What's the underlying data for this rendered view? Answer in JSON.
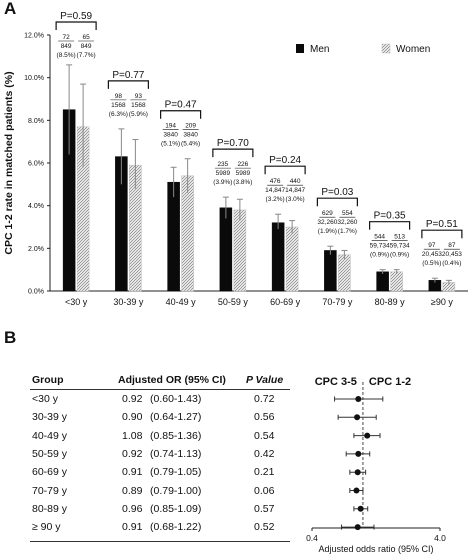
{
  "panel_labels": {
    "a": "A",
    "b": "B"
  },
  "colors": {
    "men": "#0a0a0a",
    "women_fill": "#e6e6e6",
    "women_hatch": "#9a9a9a",
    "axis": "#222222",
    "error_bar": "#888888"
  },
  "chart_data": [
    {
      "type": "bar",
      "ylabel": "CPC 1-2 rate in matched patients (%)",
      "ylim": [
        0,
        12
      ],
      "yticks": [
        "0.0%",
        "2.0%",
        "4.0%",
        "6.0%",
        "8.0%",
        "10.0%",
        "12.0%"
      ],
      "legend_placement": "top-right",
      "categories": [
        "<30 y",
        "30-39 y",
        "40-49 y",
        "50-59 y",
        "60-69 y",
        "70-79 y",
        "80-89 y",
        "≥90 y"
      ],
      "series": [
        {
          "name": "Men",
          "values": [
            8.5,
            6.3,
            5.1,
            3.9,
            3.2,
            1.9,
            0.9,
            0.5
          ],
          "err_upper": [
            10.6,
            7.6,
            5.8,
            4.4,
            3.6,
            2.1,
            1.0,
            0.6
          ],
          "err_lower": [
            6.4,
            5.0,
            4.4,
            3.4,
            2.9,
            1.7,
            0.8,
            0.4
          ]
        },
        {
          "name": "Women",
          "values": [
            7.7,
            5.9,
            5.4,
            3.8,
            3.0,
            1.7,
            0.9,
            0.4
          ],
          "err_upper": [
            9.7,
            7.1,
            6.2,
            4.3,
            3.3,
            1.9,
            1.0,
            0.5
          ],
          "err_lower": [
            5.8,
            4.8,
            4.6,
            3.3,
            2.7,
            1.5,
            0.8,
            0.3
          ]
        }
      ],
      "annotations": [
        {
          "p": "P=0.59",
          "men": [
            "72",
            "849",
            "(8.5%)"
          ],
          "women": [
            "65",
            "849",
            "(7.7%)"
          ]
        },
        {
          "p": "P=0.77",
          "men": [
            "98",
            "1568",
            "(6.3%)"
          ],
          "women": [
            "93",
            "1568",
            "(5.9%)"
          ]
        },
        {
          "p": "P=0.47",
          "men": [
            "194",
            "3840",
            "(5.1%)"
          ],
          "women": [
            "209",
            "3840",
            "(5.4%)"
          ]
        },
        {
          "p": "P=0.70",
          "men": [
            "235",
            "5989",
            "(3.9%)"
          ],
          "women": [
            "226",
            "5989",
            "(3.8%)"
          ]
        },
        {
          "p": "P=0.24",
          "men": [
            "476",
            "14,847",
            "(3.2%)"
          ],
          "women": [
            "440",
            "14,847",
            "(3.0%)"
          ]
        },
        {
          "p": "P=0.03",
          "men": [
            "629",
            "32,260",
            "(1.9%)"
          ],
          "women": [
            "554",
            "32,260",
            "(1.7%)"
          ]
        },
        {
          "p": "P=0.35",
          "men": [
            "544",
            "59,734",
            "(0.9%)"
          ],
          "women": [
            "513",
            "59,734",
            "(0.9%)"
          ]
        },
        {
          "p": "P=0.51",
          "men": [
            "97",
            "20,453",
            "(0.5%)"
          ],
          "women": [
            "87",
            "20,453",
            "(0.4%)"
          ]
        }
      ]
    },
    {
      "type": "table",
      "columns": [
        "Group",
        "Adjusted OR (95% CI)",
        "P Value"
      ],
      "rows": [
        {
          "group": "<30 y",
          "or": "0.92",
          "ci": "(0.60-1.43)",
          "p": "0.72"
        },
        {
          "group": "30-39 y",
          "or": "0.90",
          "ci": "(0.64-1.27)",
          "p": "0.56"
        },
        {
          "group": "40-49 y",
          "or": "1.08",
          "ci": "(0.85-1.36)",
          "p": "0.54"
        },
        {
          "group": "50-59 y",
          "or": "0.92",
          "ci": "(0.74-1.13)",
          "p": "0.42"
        },
        {
          "group": "60-69 y",
          "or": "0.91",
          "ci": "(0.79-1.05)",
          "p": "0.21"
        },
        {
          "group": "70-79 y",
          "or": "0.89",
          "ci": "(0.79-1.00)",
          "p": "0.06"
        },
        {
          "group": "80-89 y",
          "or": "0.96",
          "ci": "(0.85-1.09)",
          "p": "0.57"
        },
        {
          "group": "≥ 90 y",
          "or": "0.91",
          "ci": "(0.68-1.22)",
          "p": "0.52"
        }
      ]
    },
    {
      "type": "scatter",
      "subtype": "forest",
      "xlabel": "Adjusted odds ratio (95% CI)",
      "xscale": "log",
      "xlim": [
        0.4,
        4.0
      ],
      "xticks": [
        "0.4",
        "4.0"
      ],
      "reference": 1.0,
      "left_label": "CPC 3-5",
      "right_label": "CPC 1-2",
      "points": [
        {
          "or": 0.92,
          "lo": 0.6,
          "hi": 1.43
        },
        {
          "or": 0.9,
          "lo": 0.64,
          "hi": 1.27
        },
        {
          "or": 1.08,
          "lo": 0.85,
          "hi": 1.36
        },
        {
          "or": 0.92,
          "lo": 0.74,
          "hi": 1.13
        },
        {
          "or": 0.91,
          "lo": 0.79,
          "hi": 1.05
        },
        {
          "or": 0.89,
          "lo": 0.79,
          "hi": 1.0
        },
        {
          "or": 0.96,
          "lo": 0.85,
          "hi": 1.09
        },
        {
          "or": 0.91,
          "lo": 0.68,
          "hi": 1.22
        }
      ]
    }
  ]
}
